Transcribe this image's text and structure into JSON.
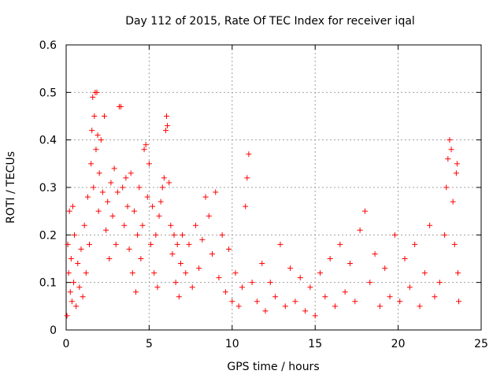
{
  "chart_data": {
    "type": "scatter",
    "title": "Day 112 of 2015, Rate Of TEC Index for receiver iqal",
    "xlabel": "GPS time / hours",
    "ylabel": "ROTI / TECUs",
    "xlim": [
      0,
      25
    ],
    "ylim": [
      0,
      0.6
    ],
    "x_ticks": [
      0,
      5,
      10,
      15,
      20,
      25
    ],
    "x_tick_labels": [
      "0",
      "5",
      "10",
      "15",
      "20",
      "25"
    ],
    "y_ticks": [
      0,
      0.1,
      0.2,
      0.3,
      0.4,
      0.5,
      0.6
    ],
    "y_tick_labels": [
      "0",
      "0.1",
      "0.2",
      "0.3",
      "0.4",
      "0.5",
      "0.6"
    ],
    "grid": true,
    "marker": "plus",
    "color": "#ff0000",
    "series": [
      {
        "points": [
          [
            0.05,
            0.03
          ],
          [
            0.1,
            0.18
          ],
          [
            0.15,
            0.12
          ],
          [
            0.2,
            0.25
          ],
          [
            0.25,
            0.08
          ],
          [
            0.3,
            0.15
          ],
          [
            0.35,
            0.06
          ],
          [
            0.4,
            0.26
          ],
          [
            0.45,
            0.1
          ],
          [
            0.5,
            0.2
          ],
          [
            0.6,
            0.05
          ],
          [
            0.7,
            0.14
          ],
          [
            0.8,
            0.09
          ],
          [
            0.9,
            0.17
          ],
          [
            1.0,
            0.07
          ],
          [
            1.1,
            0.22
          ],
          [
            1.2,
            0.12
          ],
          [
            1.3,
            0.28
          ],
          [
            1.4,
            0.18
          ],
          [
            1.5,
            0.35
          ],
          [
            1.55,
            0.42
          ],
          [
            1.6,
            0.49
          ],
          [
            1.65,
            0.3
          ],
          [
            1.7,
            0.45
          ],
          [
            1.75,
            0.5
          ],
          [
            1.8,
            0.38
          ],
          [
            1.85,
            0.5
          ],
          [
            1.9,
            0.41
          ],
          [
            1.95,
            0.25
          ],
          [
            2.0,
            0.33
          ],
          [
            2.1,
            0.4
          ],
          [
            2.2,
            0.29
          ],
          [
            2.3,
            0.45
          ],
          [
            2.4,
            0.21
          ],
          [
            2.5,
            0.27
          ],
          [
            2.6,
            0.15
          ],
          [
            2.7,
            0.31
          ],
          [
            2.8,
            0.24
          ],
          [
            2.9,
            0.34
          ],
          [
            3.0,
            0.18
          ],
          [
            3.1,
            0.29
          ],
          [
            3.2,
            0.47
          ],
          [
            3.3,
            0.47
          ],
          [
            3.4,
            0.3
          ],
          [
            3.5,
            0.22
          ],
          [
            3.6,
            0.32
          ],
          [
            3.7,
            0.26
          ],
          [
            3.8,
            0.17
          ],
          [
            3.9,
            0.33
          ],
          [
            4.0,
            0.12
          ],
          [
            4.1,
            0.25
          ],
          [
            4.2,
            0.08
          ],
          [
            4.3,
            0.2
          ],
          [
            4.4,
            0.3
          ],
          [
            4.5,
            0.15
          ],
          [
            4.6,
            0.22
          ],
          [
            4.7,
            0.38
          ],
          [
            4.8,
            0.39
          ],
          [
            4.9,
            0.28
          ],
          [
            5.0,
            0.35
          ],
          [
            5.1,
            0.18
          ],
          [
            5.2,
            0.26
          ],
          [
            5.3,
            0.12
          ],
          [
            5.4,
            0.2
          ],
          [
            5.5,
            0.09
          ],
          [
            5.6,
            0.24
          ],
          [
            5.7,
            0.27
          ],
          [
            5.8,
            0.3
          ],
          [
            5.9,
            0.32
          ],
          [
            6.0,
            0.42
          ],
          [
            6.05,
            0.45
          ],
          [
            6.1,
            0.43
          ],
          [
            6.2,
            0.31
          ],
          [
            6.3,
            0.22
          ],
          [
            6.4,
            0.16
          ],
          [
            6.5,
            0.2
          ],
          [
            6.6,
            0.1
          ],
          [
            6.7,
            0.18
          ],
          [
            6.8,
            0.07
          ],
          [
            6.9,
            0.14
          ],
          [
            7.0,
            0.2
          ],
          [
            7.2,
            0.12
          ],
          [
            7.4,
            0.18
          ],
          [
            7.6,
            0.09
          ],
          [
            7.8,
            0.22
          ],
          [
            8.0,
            0.13
          ],
          [
            8.2,
            0.19
          ],
          [
            8.4,
            0.28
          ],
          [
            8.6,
            0.24
          ],
          [
            8.8,
            0.16
          ],
          [
            9.0,
            0.29
          ],
          [
            9.2,
            0.11
          ],
          [
            9.4,
            0.2
          ],
          [
            9.6,
            0.08
          ],
          [
            9.8,
            0.17
          ],
          [
            10.0,
            0.06
          ],
          [
            10.2,
            0.12
          ],
          [
            10.4,
            0.05
          ],
          [
            10.6,
            0.09
          ],
          [
            10.8,
            0.26
          ],
          [
            10.9,
            0.32
          ],
          [
            11.0,
            0.37
          ],
          [
            11.2,
            0.1
          ],
          [
            11.5,
            0.06
          ],
          [
            11.8,
            0.14
          ],
          [
            12.0,
            0.04
          ],
          [
            12.3,
            0.1
          ],
          [
            12.6,
            0.07
          ],
          [
            12.9,
            0.18
          ],
          [
            13.2,
            0.05
          ],
          [
            13.5,
            0.13
          ],
          [
            13.8,
            0.06
          ],
          [
            14.1,
            0.11
          ],
          [
            14.4,
            0.04
          ],
          [
            14.7,
            0.09
          ],
          [
            15.0,
            0.03
          ],
          [
            15.3,
            0.12
          ],
          [
            15.6,
            0.07
          ],
          [
            15.9,
            0.15
          ],
          [
            16.2,
            0.05
          ],
          [
            16.5,
            0.18
          ],
          [
            16.8,
            0.08
          ],
          [
            17.1,
            0.14
          ],
          [
            17.4,
            0.06
          ],
          [
            17.7,
            0.21
          ],
          [
            18.0,
            0.25
          ],
          [
            18.3,
            0.1
          ],
          [
            18.6,
            0.16
          ],
          [
            18.9,
            0.05
          ],
          [
            19.2,
            0.13
          ],
          [
            19.5,
            0.07
          ],
          [
            19.8,
            0.2
          ],
          [
            20.1,
            0.06
          ],
          [
            20.4,
            0.15
          ],
          [
            20.7,
            0.09
          ],
          [
            21.0,
            0.18
          ],
          [
            21.3,
            0.05
          ],
          [
            21.6,
            0.12
          ],
          [
            21.9,
            0.22
          ],
          [
            22.2,
            0.07
          ],
          [
            22.5,
            0.1
          ],
          [
            22.8,
            0.2
          ],
          [
            22.9,
            0.3
          ],
          [
            23.0,
            0.36
          ],
          [
            23.1,
            0.4
          ],
          [
            23.2,
            0.38
          ],
          [
            23.3,
            0.27
          ],
          [
            23.4,
            0.18
          ],
          [
            23.5,
            0.33
          ],
          [
            23.55,
            0.35
          ],
          [
            23.6,
            0.12
          ],
          [
            23.65,
            0.06
          ]
        ]
      }
    ]
  }
}
